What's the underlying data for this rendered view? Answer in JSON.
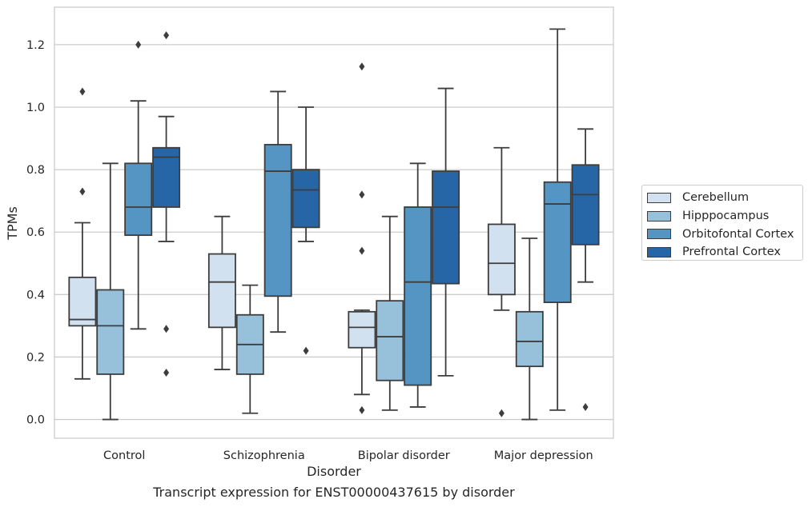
{
  "chart_data": {
    "type": "box",
    "xlabel": "Disorder",
    "ylabel": "TPMs",
    "ylim": [
      -0.06,
      1.32
    ],
    "yticks": [
      0.0,
      0.2,
      0.4,
      0.6,
      0.8,
      1.0,
      1.2
    ],
    "ytick_labels": [
      "0.0",
      "0.2",
      "0.4",
      "0.6",
      "0.8",
      "1.0",
      "1.2"
    ],
    "grid": "horizontal",
    "legend_position": "right",
    "categories": [
      "Control",
      "Schizophrenia",
      "Bipolar disorder",
      "Major depression"
    ],
    "series": [
      {
        "name": "Cerebellum",
        "color": "#d2e1f0",
        "boxes": [
          {
            "whislo": 0.13,
            "q1": 0.3,
            "med": 0.32,
            "q3": 0.455,
            "whishi": 0.63,
            "fliers": [
              0.73,
              1.05
            ]
          },
          {
            "whislo": 0.16,
            "q1": 0.295,
            "med": 0.44,
            "q3": 0.53,
            "whishi": 0.65,
            "fliers": []
          },
          {
            "whislo": 0.08,
            "q1": 0.23,
            "med": 0.295,
            "q3": 0.345,
            "whishi": 0.35,
            "fliers": [
              0.03,
              0.54,
              0.72,
              1.13
            ]
          },
          {
            "whislo": 0.35,
            "q1": 0.4,
            "med": 0.5,
            "q3": 0.625,
            "whishi": 0.87,
            "fliers": [
              0.02
            ]
          }
        ]
      },
      {
        "name": "Hipppocampus",
        "color": "#97c1da",
        "boxes": [
          {
            "whislo": 0.0,
            "q1": 0.145,
            "med": 0.3,
            "q3": 0.415,
            "whishi": 0.82,
            "fliers": []
          },
          {
            "whislo": 0.02,
            "q1": 0.145,
            "med": 0.24,
            "q3": 0.335,
            "whishi": 0.43,
            "fliers": []
          },
          {
            "whislo": 0.03,
            "q1": 0.125,
            "med": 0.265,
            "q3": 0.38,
            "whishi": 0.65,
            "fliers": []
          },
          {
            "whislo": 0.0,
            "q1": 0.17,
            "med": 0.25,
            "q3": 0.345,
            "whishi": 0.58,
            "fliers": []
          }
        ]
      },
      {
        "name": "Orbitofontal Cortex",
        "color": "#5595c4",
        "boxes": [
          {
            "whislo": 0.29,
            "q1": 0.59,
            "med": 0.68,
            "q3": 0.82,
            "whishi": 1.02,
            "fliers": [
              1.2
            ]
          },
          {
            "whislo": 0.28,
            "q1": 0.395,
            "med": 0.795,
            "q3": 0.88,
            "whishi": 1.05,
            "fliers": []
          },
          {
            "whislo": 0.04,
            "q1": 0.11,
            "med": 0.44,
            "q3": 0.68,
            "whishi": 0.82,
            "fliers": []
          },
          {
            "whislo": 0.03,
            "q1": 0.375,
            "med": 0.69,
            "q3": 0.76,
            "whishi": 1.25,
            "fliers": []
          }
        ]
      },
      {
        "name": "Prefrontal Cortex",
        "color": "#2766a6",
        "boxes": [
          {
            "whislo": 0.57,
            "q1": 0.68,
            "med": 0.84,
            "q3": 0.87,
            "whishi": 0.97,
            "fliers": [
              0.15,
              0.29,
              1.23
            ]
          },
          {
            "whislo": 0.57,
            "q1": 0.615,
            "med": 0.735,
            "q3": 0.8,
            "whishi": 1.0,
            "fliers": [
              0.22
            ]
          },
          {
            "whislo": 0.14,
            "q1": 0.435,
            "med": 0.68,
            "q3": 0.795,
            "whishi": 1.06,
            "fliers": []
          },
          {
            "whislo": 0.44,
            "q1": 0.56,
            "med": 0.72,
            "q3": 0.815,
            "whishi": 0.93,
            "fliers": [
              0.04
            ]
          }
        ]
      }
    ]
  },
  "caption": "Transcript expression for ENST00000437615 by disorder"
}
